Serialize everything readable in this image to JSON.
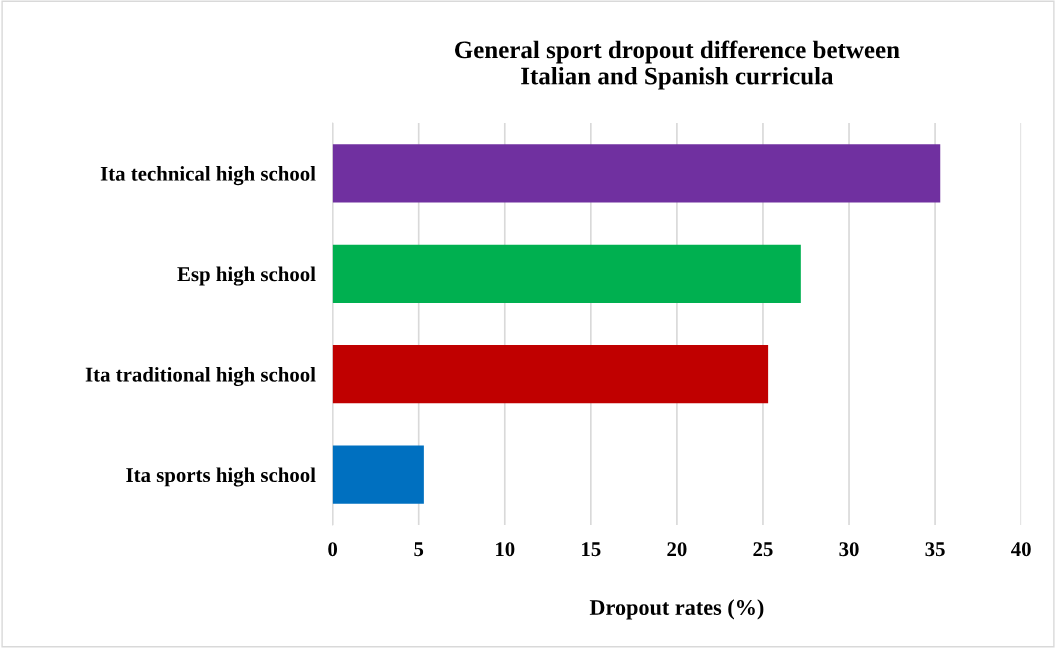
{
  "chart_data": {
    "type": "bar",
    "orientation": "horizontal",
    "title": "General sport dropout difference between\nItalian and Spanish curricula",
    "xlabel": "Dropout rates (%)",
    "categories": [
      "Ita technical high school",
      "Esp high school",
      "Ita traditional high school",
      "Ita sports high school"
    ],
    "values": [
      35.3,
      27.2,
      25.3,
      5.3
    ],
    "colors": [
      "#7030a0",
      "#00b050",
      "#c00000",
      "#0070c0"
    ],
    "xlim": [
      0,
      40
    ],
    "xticks": [
      0,
      5,
      10,
      15,
      20,
      25,
      30,
      35,
      40
    ],
    "grid": "x",
    "legend": false
  }
}
